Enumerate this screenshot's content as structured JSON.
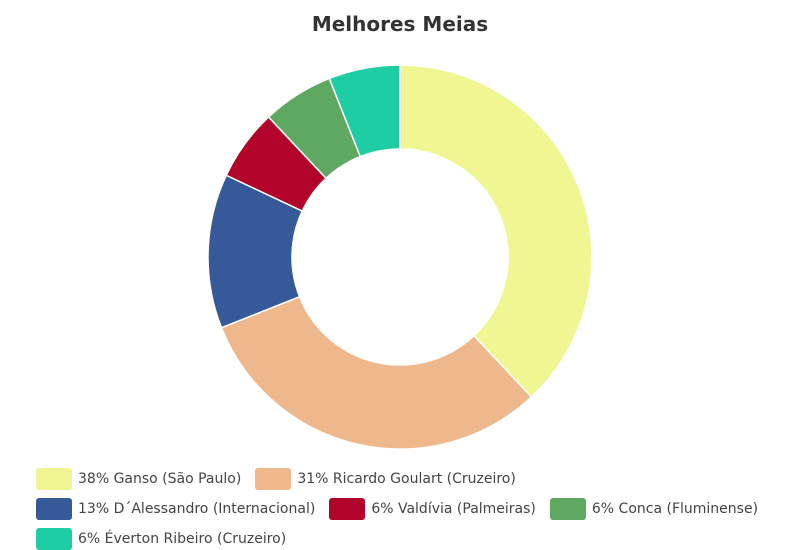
{
  "chart_data": {
    "type": "pie",
    "title": "Melhores Meias",
    "donut": true,
    "legend_position": "bottom",
    "slices": [
      {
        "label": "38% Ganso (São Paulo)",
        "value": 38,
        "color": "#f0f792"
      },
      {
        "label": "31% Ricardo Goulart (Cruzeiro)",
        "value": 31,
        "color": "#efb78c"
      },
      {
        "label": "13% D´Alessandro (Internacional)",
        "value": 13,
        "color": "#365a99"
      },
      {
        "label": "6% Valdívia (Palmeiras)",
        "value": 6,
        "color": "#b2032a"
      },
      {
        "label": "6% Conca (Fluminense)",
        "value": 6,
        "color": "#5ea862"
      },
      {
        "label": "6% Éverton Ribeiro (Cruzeiro)",
        "value": 6,
        "color": "#1fcda4"
      }
    ]
  }
}
